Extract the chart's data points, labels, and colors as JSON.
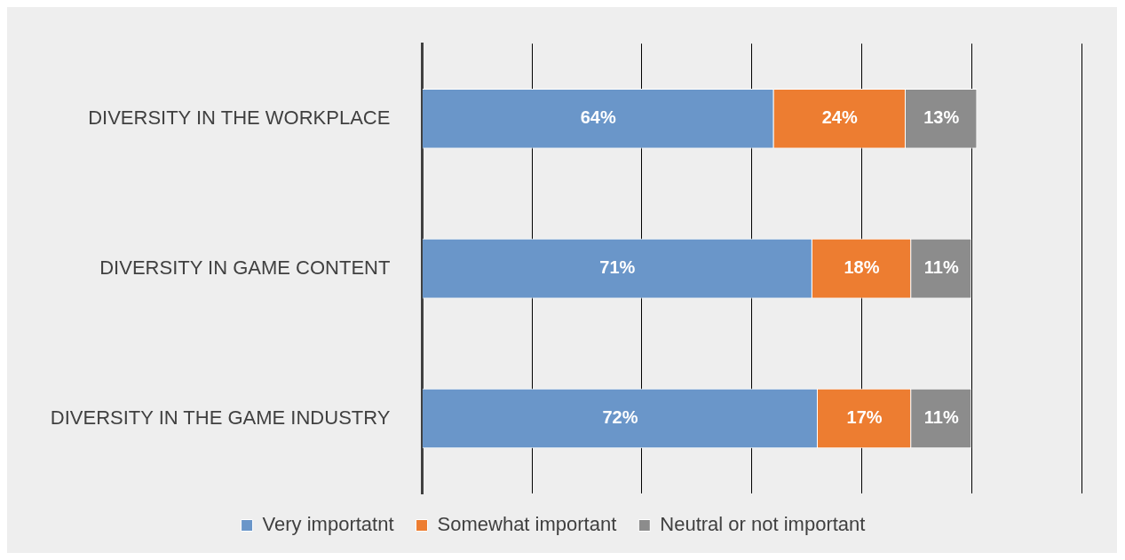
{
  "chart_data": {
    "type": "bar",
    "orientation": "horizontal",
    "stacked": true,
    "categories": [
      "DIVERSITY IN THE WORKPLACE",
      "DIVERSITY IN GAME CONTENT",
      "DIVERSITY IN THE GAME INDUSTRY"
    ],
    "series": [
      {
        "name": "Very importatnt",
        "color": "#6a96c9",
        "values": [
          64,
          71,
          72
        ],
        "value_labels": [
          "64%",
          "71%",
          "72%"
        ]
      },
      {
        "name": "Somewhat important",
        "color": "#ed7d31",
        "values": [
          24,
          18,
          17
        ],
        "value_labels": [
          "24%",
          "18%",
          "17%"
        ]
      },
      {
        "name": "Neutral or not important",
        "color": "#8c8c8c",
        "values": [
          13,
          11,
          11
        ],
        "value_labels": [
          "13%",
          "11%",
          "11%"
        ]
      }
    ],
    "tick_labels": "y",
    "grid": "x",
    "legend": "bottom"
  }
}
